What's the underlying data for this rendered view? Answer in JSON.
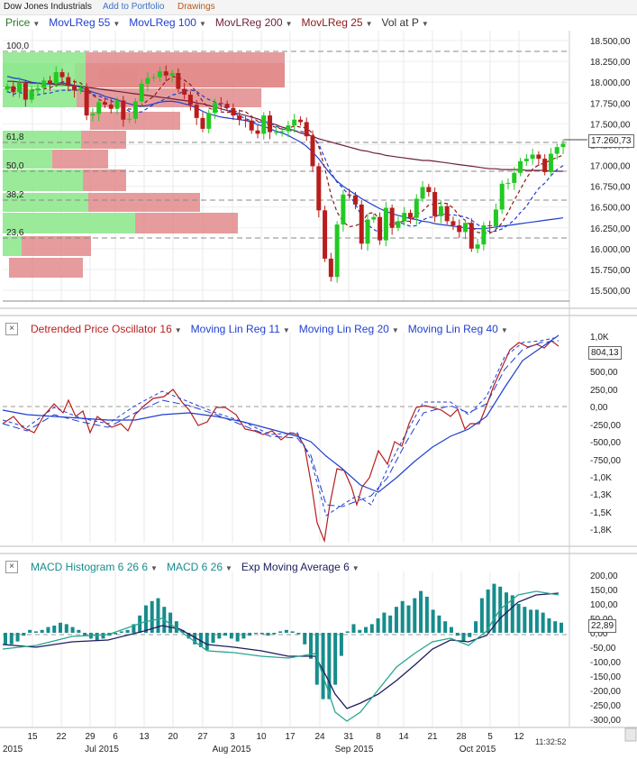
{
  "header": {
    "title": "Dow Jones Industrials",
    "portfolio_link": "Add to Portfolio",
    "drawings_link": "Drawings"
  },
  "colors": {
    "price_up": "#22c922",
    "price_down": "#b81d1d",
    "lr55": "#1f3fcf",
    "lr100": "#1f3fcf",
    "lr200": "#6e1f3a",
    "lr25": "#8b1a1a",
    "vap_up": "#8fe88f",
    "vap_down": "#e28b8b",
    "macd_hist": "#178c8c",
    "macd_line": "#1d1d5e",
    "macd_ema": "#2aa58f"
  },
  "panels": {
    "price": {
      "legend": [
        "Price",
        "MovLReg 55",
        "MovLReg 100",
        "MovLReg 200",
        "MovLReg 25",
        "Vol at P"
      ],
      "last_value": "17.260,73",
      "y_ticks": [
        "18.500,00",
        "18.250,00",
        "18.000,00",
        "17.750,00",
        "17.500,00",
        "17.250,00",
        "17.000,00",
        "16.750,00",
        "16.500,00",
        "16.250,00",
        "16.000,00",
        "15.750,00",
        "15.500,00"
      ],
      "fib_levels": [
        "100,0",
        "61,8",
        "50,0",
        "38,2",
        "23,6"
      ]
    },
    "dpo": {
      "legend": [
        "Detrended Price Oscillator 16",
        "Moving Lin Reg 11",
        "Moving Lin Reg 20",
        "Moving Lin Reg 40"
      ],
      "last_value": "804,13",
      "y_ticks": [
        "1,0K",
        "500,00",
        "250,00",
        "0,00",
        "-250,00",
        "-500,00",
        "-750,00",
        "-1,0K",
        "-1,3K",
        "-1,5K",
        "-1,8K"
      ]
    },
    "macd": {
      "legend": [
        "MACD Histogram 6 26 6",
        "MACD 6 26",
        "Exp Moving Average 6"
      ],
      "last_value": "22,89",
      "y_ticks": [
        "200,00",
        "150,00",
        "100,00",
        "50,00",
        "0,00",
        "-50,00",
        "-100,00",
        "-150,00",
        "-200,00",
        "-250,00",
        "-300,00"
      ]
    }
  },
  "x_axis": {
    "day_labels": [
      "15",
      "22",
      "29",
      "6",
      "13",
      "20",
      "27",
      "3",
      "10",
      "17",
      "24",
      "31",
      "8",
      "14",
      "21",
      "28",
      "5",
      "12"
    ],
    "month_labels": [
      "2015",
      "Jul 2015",
      "Aug 2015",
      "Sep 2015",
      "Oct 2015"
    ],
    "clock": "11:32:52"
  },
  "chart_data": {
    "type": "candlestick",
    "x": [
      "Jun 10",
      "Jun 11",
      "Jun 12",
      "Jun 15",
      "Jun 16",
      "Jun 17",
      "Jun 18",
      "Jun 19",
      "Jun 22",
      "Jun 23",
      "Jun 24",
      "Jun 25",
      "Jun 26",
      "Jun 29",
      "Jun 30",
      "Jul 1",
      "Jul 2",
      "Jul 6",
      "Jul 7",
      "Jul 8",
      "Jul 9",
      "Jul 10",
      "Jul 13",
      "Jul 14",
      "Jul 15",
      "Jul 16",
      "Jul 17",
      "Jul 20",
      "Jul 21",
      "Jul 22",
      "Jul 23",
      "Jul 24",
      "Jul 27",
      "Jul 28",
      "Jul 29",
      "Jul 30",
      "Jul 31",
      "Aug 3",
      "Aug 4",
      "Aug 5",
      "Aug 6",
      "Aug 7",
      "Aug 10",
      "Aug 11",
      "Aug 12",
      "Aug 13",
      "Aug 14",
      "Aug 17",
      "Aug 18",
      "Aug 19",
      "Aug 20",
      "Aug 21",
      "Aug 24",
      "Aug 25",
      "Aug 26",
      "Aug 27",
      "Aug 28",
      "Aug 31",
      "Sep 1",
      "Sep 2",
      "Sep 3",
      "Sep 4",
      "Sep 8",
      "Sep 9",
      "Sep 10",
      "Sep 11",
      "Sep 14",
      "Sep 15",
      "Sep 16",
      "Sep 17",
      "Sep 18",
      "Sep 21",
      "Sep 22",
      "Sep 23",
      "Sep 24",
      "Sep 25",
      "Sep 28",
      "Sep 29",
      "Sep 30",
      "Oct 1",
      "Oct 2",
      "Oct 5",
      "Oct 6",
      "Oct 7",
      "Oct 8",
      "Oct 9",
      "Oct 12",
      "Oct 13",
      "Oct 14",
      "Oct 15",
      "Oct 16",
      "Oct 19"
    ],
    "close": [
      17950,
      17880,
      17990,
      17790,
      17900,
      17930,
      18020,
      17980,
      18120,
      18060,
      17960,
      17900,
      17930,
      17600,
      17620,
      17760,
      17730,
      17680,
      17780,
      17550,
      17560,
      17770,
      17980,
      18050,
      18060,
      18130,
      18080,
      18110,
      17920,
      17850,
      17730,
      17570,
      17440,
      17630,
      17750,
      17740,
      17690,
      17600,
      17550,
      17540,
      17420,
      17380,
      17600,
      17400,
      17400,
      17410,
      17480,
      17550,
      17520,
      17350,
      16990,
      16460,
      15880,
      15660,
      16290,
      16650,
      16640,
      16530,
      16060,
      16350,
      16380,
      16100,
      16490,
      16250,
      16330,
      16430,
      16370,
      16600,
      16740,
      16680,
      16390,
      16510,
      16330,
      16280,
      16200,
      16310,
      16000,
      16050,
      16280,
      16270,
      16470,
      16780,
      16790,
      16910,
      17050,
      17080,
      17130,
      17080,
      16920,
      17140,
      17220,
      17260
    ],
    "series": [
      {
        "name": "MovLReg 55",
        "values": [
          18070,
          18050,
          18040,
          18020,
          18000,
          17990,
          17980,
          17980,
          17990,
          17990,
          17980,
          17960,
          17940,
          17910,
          17880,
          17860,
          17830,
          17810,
          17790,
          17760,
          17740,
          17720,
          17710,
          17720,
          17740,
          17760,
          17770,
          17770,
          17760,
          17740,
          17720,
          17690,
          17650,
          17620,
          17600,
          17580,
          17570,
          17560,
          17550,
          17540,
          17520,
          17490,
          17470,
          17440,
          17410,
          17390,
          17360,
          17320,
          17280,
          17230,
          17160,
          17080,
          16980,
          16890,
          16810,
          16750,
          16700,
          16650,
          16600,
          16560,
          16520,
          16480,
          16450,
          16420,
          16400,
          16380,
          16360,
          16350,
          16330,
          16320,
          16300,
          16290,
          16280,
          16270,
          16260,
          16250,
          16240,
          16240,
          16240,
          16250,
          16260,
          16270,
          16280,
          16290,
          16300,
          16310,
          16320,
          16330,
          16340,
          16350,
          16360,
          16370
        ]
      },
      {
        "name": "MovLReg 200",
        "values": [
          18010,
          18010,
          18000,
          18000,
          17990,
          17990,
          17980,
          17980,
          17970,
          17970,
          17960,
          17960,
          17950,
          17940,
          17930,
          17920,
          17910,
          17900,
          17890,
          17880,
          17870,
          17860,
          17850,
          17840,
          17830,
          17820,
          17810,
          17800,
          17790,
          17780,
          17770,
          17750,
          17740,
          17720,
          17700,
          17680,
          17660,
          17640,
          17620,
          17600,
          17580,
          17560,
          17530,
          17510,
          17490,
          17460,
          17440,
          17420,
          17390,
          17370,
          17350,
          17320,
          17300,
          17280,
          17260,
          17240,
          17220,
          17200,
          17180,
          17170,
          17150,
          17140,
          17120,
          17110,
          17100,
          17090,
          17080,
          17070,
          17060,
          17060,
          17050,
          17040,
          17030,
          17020,
          17010,
          17000,
          16990,
          16980,
          16970,
          16960,
          16960,
          16950,
          16950,
          16950,
          16950,
          16940,
          16940,
          16940,
          16940,
          16930,
          16930,
          16930
        ]
      }
    ],
    "ylim": [
      15400,
      18600
    ]
  }
}
